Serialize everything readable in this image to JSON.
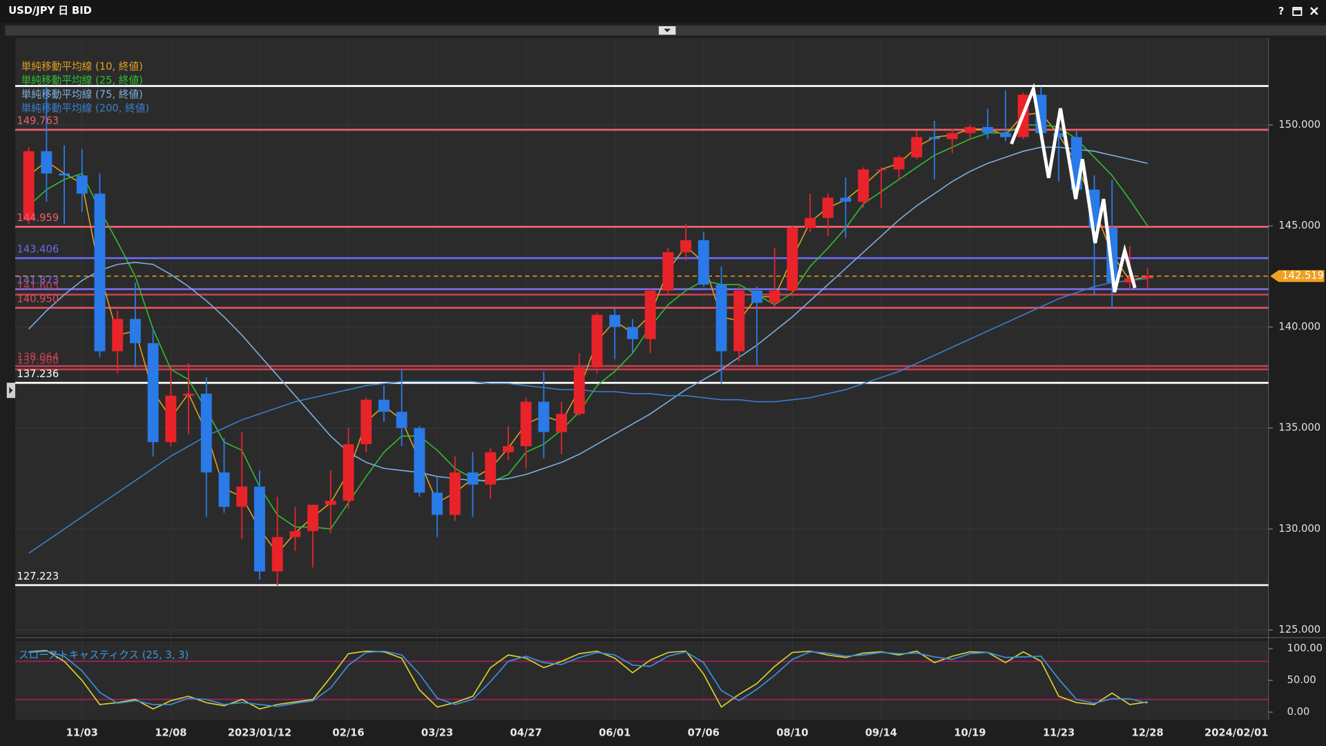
{
  "window": {
    "help": "?"
  },
  "chart_data": [
    {
      "type": "candlestick",
      "title": "USD/JPY 日 BID",
      "categories": [
        null,
        null,
        null,
        "11/03",
        null,
        null,
        null,
        null,
        "12/08",
        null,
        null,
        null,
        null,
        "2023/01/12",
        null,
        null,
        null,
        null,
        "02/16",
        null,
        null,
        null,
        null,
        "03/23",
        null,
        null,
        null,
        null,
        "04/27",
        null,
        null,
        null,
        null,
        "06/01",
        null,
        null,
        null,
        null,
        "07/06",
        null,
        null,
        null,
        null,
        "08/10",
        null,
        null,
        null,
        null,
        "09/14",
        null,
        null,
        null,
        null,
        "10/19",
        null,
        null,
        null,
        null,
        "11/23",
        null,
        null,
        null,
        null,
        "12/28",
        null,
        null,
        null,
        null,
        "2024/02/01"
      ],
      "open": [
        145.3,
        148.7,
        147.6,
        147.5,
        146.6,
        138.8,
        140.4,
        139.2,
        134.3,
        136.6,
        136.7,
        132.8,
        131.1,
        132.1,
        127.9,
        129.6,
        129.9,
        131.2,
        131.4,
        134.2,
        136.4,
        135.8,
        135.0,
        131.8,
        130.7,
        132.8,
        132.2,
        133.8,
        134.1,
        136.3,
        134.8,
        135.7,
        138.0,
        140.6,
        140.0,
        139.4,
        141.8,
        143.7,
        144.3,
        142.1,
        138.8,
        141.8,
        141.2,
        141.8,
        144.9,
        145.4,
        146.4,
        146.2,
        147.8,
        147.8,
        148.4,
        149.4,
        149.3,
        149.6,
        149.9,
        149.6,
        149.4,
        151.5,
        149.6,
        149.4,
        146.8,
        144.9,
        142.2,
        142.4,
        null,
        null,
        null,
        null,
        null
      ],
      "high": [
        148.9,
        151.9,
        149.0,
        148.8,
        147.6,
        140.8,
        142.2,
        139.9,
        137.9,
        138.2,
        137.5,
        134.5,
        134.8,
        132.9,
        131.6,
        131.1,
        131.2,
        132.9,
        135.0,
        136.5,
        137.1,
        137.9,
        135.1,
        132.6,
        133.6,
        133.8,
        134.0,
        135.1,
        136.5,
        137.8,
        136.3,
        138.7,
        140.7,
        140.9,
        140.4,
        141.9,
        143.9,
        145.1,
        144.7,
        143.0,
        142.0,
        142.0,
        143.9,
        145.0,
        146.6,
        146.6,
        147.4,
        147.9,
        147.9,
        148.5,
        149.7,
        150.2,
        149.8,
        150.0,
        150.8,
        151.7,
        151.6,
        151.9,
        149.9,
        149.7,
        147.5,
        147.3,
        144.0,
        142.9,
        null,
        null,
        null,
        null,
        null
      ],
      "low": [
        145.1,
        146.2,
        145.1,
        145.7,
        138.5,
        137.7,
        138.0,
        133.6,
        134.1,
        134.7,
        130.6,
        130.8,
        129.5,
        127.5,
        127.2,
        128.9,
        128.1,
        129.8,
        131.0,
        133.8,
        135.3,
        134.1,
        131.6,
        129.6,
        130.4,
        130.6,
        131.5,
        133.4,
        133.0,
        133.5,
        133.7,
        135.6,
        137.7,
        138.4,
        138.7,
        138.7,
        141.6,
        143.3,
        142.0,
        137.2,
        138.3,
        138.1,
        141.0,
        141.5,
        144.7,
        144.5,
        144.4,
        145.9,
        145.9,
        147.3,
        148.3,
        147.3,
        148.6,
        149.3,
        149.3,
        149.2,
        149.3,
        149.2,
        147.2,
        146.7,
        141.6,
        140.9,
        141.8,
        141.9,
        null,
        null,
        null,
        null,
        null
      ],
      "close": [
        148.7,
        147.6,
        147.5,
        146.6,
        138.8,
        140.4,
        139.2,
        134.3,
        136.6,
        136.7,
        132.8,
        131.1,
        132.1,
        127.9,
        129.6,
        129.9,
        131.2,
        131.4,
        134.2,
        136.4,
        135.8,
        135.0,
        131.8,
        130.7,
        132.8,
        132.2,
        133.8,
        134.1,
        136.3,
        134.8,
        135.7,
        138.0,
        140.6,
        140.0,
        139.4,
        141.8,
        143.7,
        144.3,
        142.1,
        138.8,
        141.8,
        141.2,
        141.8,
        144.9,
        145.4,
        146.4,
        146.2,
        147.8,
        147.8,
        148.4,
        149.4,
        149.3,
        149.6,
        149.9,
        149.6,
        149.4,
        151.5,
        149.6,
        149.4,
        146.8,
        144.9,
        142.2,
        142.4,
        142.5,
        null,
        null,
        null,
        null,
        null
      ],
      "up_color": "#e8232a",
      "down_color": "#2a7ae8",
      "ylim": [
        124.75,
        154.3
      ],
      "yticks": [
        {
          "value": 125,
          "label": "125.000"
        },
        {
          "value": 130,
          "label": "130.000"
        },
        {
          "value": 135,
          "label": "135.000"
        },
        {
          "value": 140,
          "label": "140.000"
        },
        {
          "value": 145,
          "label": "145.000"
        },
        {
          "value": 150,
          "label": "150.000"
        }
      ],
      "ma_series": [
        {
          "name": "単純移動平均線 (10, 終値)",
          "color": "#e0a020",
          "values": [
            147.5,
            148.2,
            147.6,
            147.1,
            142.7,
            139.6,
            139.8,
            136.8,
            135.5,
            136.7,
            134.8,
            132.0,
            131.6,
            130.0,
            128.8,
            129.8,
            130.6,
            131.3,
            132.8,
            135.3,
            136.1,
            135.4,
            133.4,
            131.3,
            131.8,
            132.5,
            133.0,
            134.0,
            135.2,
            135.6,
            135.3,
            136.9,
            139.3,
            140.3,
            139.7,
            140.6,
            142.8,
            144.0,
            143.2,
            140.5,
            140.3,
            141.5,
            141.5,
            143.4,
            145.2,
            145.9,
            146.3,
            147.0,
            147.8,
            148.1,
            148.9,
            149.4,
            149.5,
            149.8,
            149.8,
            149.5,
            150.5,
            150.6,
            149.5,
            148.1,
            145.9,
            143.6,
            142.3,
            142.5,
            null,
            null,
            null,
            null,
            null
          ]
        },
        {
          "name": "単純移動平均線 (25, 終値)",
          "color": "#30c030",
          "values": [
            146.0,
            146.8,
            147.3,
            147.6,
            145.8,
            144.2,
            142.5,
            139.9,
            137.9,
            137.4,
            135.9,
            134.3,
            133.9,
            132.1,
            130.7,
            130.1,
            130.1,
            130.0,
            131.3,
            132.6,
            133.8,
            134.6,
            134.6,
            133.9,
            133.0,
            132.5,
            132.3,
            132.7,
            133.8,
            134.2,
            134.9,
            135.8,
            137.1,
            137.8,
            138.7,
            140.0,
            141.1,
            141.8,
            142.3,
            142.1,
            142.1,
            141.6,
            141.1,
            141.7,
            143.0,
            143.9,
            144.9,
            146.1,
            146.7,
            147.3,
            147.9,
            148.5,
            148.9,
            149.3,
            149.6,
            149.6,
            150.0,
            150.0,
            149.9,
            149.3,
            148.4,
            147.5,
            146.3,
            145.0,
            null,
            null,
            null,
            null,
            null
          ]
        },
        {
          "name": "単純移動平均線 (75, 終値)",
          "color": "#7fb0e0",
          "values": [
            139.9,
            140.8,
            141.6,
            142.3,
            142.8,
            143.1,
            143.2,
            143.1,
            142.6,
            142.0,
            141.3,
            140.5,
            139.6,
            138.6,
            137.6,
            136.6,
            135.6,
            134.6,
            133.8,
            133.3,
            133.0,
            132.9,
            132.8,
            132.6,
            132.5,
            132.4,
            132.4,
            132.5,
            132.7,
            133.0,
            133.3,
            133.7,
            134.2,
            134.7,
            135.2,
            135.7,
            136.3,
            136.9,
            137.4,
            137.9,
            138.5,
            139.1,
            139.8,
            140.5,
            141.3,
            142.1,
            142.9,
            143.7,
            144.5,
            145.3,
            146.0,
            146.6,
            147.2,
            147.7,
            148.1,
            148.4,
            148.7,
            148.9,
            148.9,
            148.8,
            148.7,
            148.5,
            148.3,
            148.1,
            null,
            null,
            null,
            null,
            null
          ]
        },
        {
          "name": "単純移動平均線 (200, 終値)",
          "color": "#3a80d0",
          "values": [
            128.8,
            129.4,
            130.0,
            130.6,
            131.2,
            131.8,
            132.4,
            133.0,
            133.6,
            134.1,
            134.6,
            135.0,
            135.4,
            135.7,
            136.0,
            136.3,
            136.5,
            136.7,
            136.9,
            137.1,
            137.2,
            137.3,
            137.3,
            137.3,
            137.3,
            137.3,
            137.2,
            137.2,
            137.1,
            137.0,
            136.9,
            136.9,
            136.8,
            136.8,
            136.7,
            136.7,
            136.6,
            136.6,
            136.5,
            136.4,
            136.4,
            136.3,
            136.3,
            136.4,
            136.5,
            136.7,
            136.9,
            137.2,
            137.5,
            137.8,
            138.2,
            138.6,
            139.0,
            139.4,
            139.8,
            140.2,
            140.6,
            141.0,
            141.4,
            141.7,
            142.0,
            142.2,
            142.3,
            142.4,
            null,
            null,
            null,
            null,
            null
          ]
        }
      ],
      "levels": [
        {
          "value": 151.93,
          "color": "#ffffff"
        },
        {
          "value": 149.763,
          "color": "#f0606a"
        },
        {
          "value": 144.959,
          "color": "#f0606a"
        },
        {
          "value": 143.406,
          "color": "#6a6af0"
        },
        {
          "value": 141.873,
          "color": "#7a6ae8"
        },
        {
          "value": 141.603,
          "color": "#c04050"
        },
        {
          "value": 140.95,
          "label": "140.950",
          "color": "#e05060"
        },
        {
          "value": 138.064,
          "color": "#c04050"
        },
        {
          "value": 137.9,
          "label": "137.900",
          "color": "#c04050"
        },
        {
          "value": 137.236,
          "color": "#ffffff"
        },
        {
          "value": 127.223,
          "color": "#ffffff"
        }
      ],
      "last_price": {
        "value": 142.519,
        "label": "142.519",
        "color": "#f0a020"
      }
    },
    {
      "type": "line",
      "title": "スローストキャスティクス (25, 3, 3)",
      "color": "#3a9ae0",
      "series": [
        {
          "color": "#d8d030",
          "values": [
            95,
            97,
            80,
            50,
            12,
            15,
            20,
            5,
            18,
            25,
            15,
            10,
            20,
            5,
            12,
            16,
            20,
            55,
            92,
            96,
            95,
            85,
            35,
            8,
            15,
            25,
            70,
            90,
            85,
            70,
            80,
            92,
            96,
            85,
            62,
            82,
            94,
            96,
            60,
            8,
            28,
            45,
            72,
            94,
            96,
            90,
            86,
            93,
            95,
            90,
            96,
            78,
            88,
            95,
            94,
            78,
            95,
            80,
            25,
            15,
            12,
            30,
            12,
            16,
            null,
            null,
            null,
            null,
            null
          ]
        },
        {
          "color": "#3a90e0",
          "values": [
            94,
            96,
            88,
            65,
            31,
            14,
            18,
            12,
            12,
            22,
            20,
            12,
            15,
            12,
            9,
            14,
            18,
            38,
            74,
            94,
            96,
            90,
            60,
            22,
            12,
            20,
            48,
            80,
            88,
            78,
            75,
            86,
            94,
            90,
            74,
            72,
            88,
            95,
            78,
            34,
            18,
            36,
            58,
            83,
            95,
            93,
            88,
            90,
            94,
            92,
            93,
            87,
            83,
            92,
            94,
            86,
            87,
            88,
            52,
            20,
            14,
            21,
            21,
            14,
            null,
            null,
            null,
            null,
            null
          ]
        }
      ],
      "ylim": [
        -12,
        112
      ],
      "yticks": [
        {
          "value": 0,
          "label": "0.00"
        },
        {
          "value": 50,
          "label": "50.00"
        },
        {
          "value": 100,
          "label": "100.00"
        }
      ],
      "levels": [
        80,
        20
      ],
      "level_color": "#a0205a"
    }
  ]
}
